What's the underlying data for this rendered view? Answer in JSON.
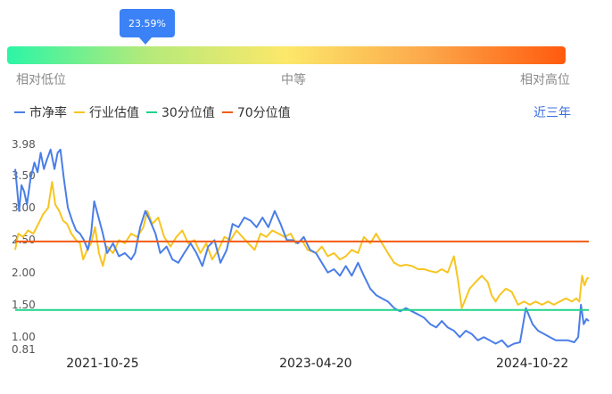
{
  "gauge": {
    "tooltip": "23.59%",
    "percentile": 23.59,
    "low_label": "相对低位",
    "mid_label": "中等",
    "high_label": "相对高位"
  },
  "range_selector": "近三年",
  "colors": {
    "pb": "#4a7ee8",
    "industry": "#f7c521",
    "p30": "#20d38c",
    "p70": "#f25a12",
    "tooltip": "#3b82f6"
  },
  "chart_data": {
    "type": "line",
    "ylim": [
      0.81,
      3.98
    ],
    "yticks": [
      "3.98",
      "3.50",
      "3.00",
      "2.50",
      "2.00",
      "1.50",
      "1.00",
      "0.81"
    ],
    "ytick_values": [
      3.98,
      3.5,
      3.0,
      2.5,
      2.0,
      1.5,
      1.0,
      0.81
    ],
    "x_range": [
      "2021-03-16",
      "2025-03-14"
    ],
    "xticks": [
      "2021-10-25",
      "2023-04-20",
      "2024-10-22"
    ],
    "series": [
      {
        "name": "市净率",
        "color": "#4a7ee8",
        "points": [
          [
            "2021-03-16",
            3.6
          ],
          [
            "2021-03-20",
            3.35
          ],
          [
            "2021-03-26",
            2.95
          ],
          [
            "2021-04-01",
            3.35
          ],
          [
            "2021-04-08",
            3.25
          ],
          [
            "2021-04-15",
            3.05
          ],
          [
            "2021-04-24",
            3.45
          ],
          [
            "2021-05-04",
            3.7
          ],
          [
            "2021-05-12",
            3.55
          ],
          [
            "2021-05-20",
            3.85
          ],
          [
            "2021-05-28",
            3.6
          ],
          [
            "2021-06-05",
            3.75
          ],
          [
            "2021-06-14",
            3.9
          ],
          [
            "2021-06-24",
            3.6
          ],
          [
            "2021-07-02",
            3.85
          ],
          [
            "2021-07-09",
            3.9
          ],
          [
            "2021-07-18",
            3.45
          ],
          [
            "2021-07-28",
            3.0
          ],
          [
            "2021-08-08",
            2.8
          ],
          [
            "2021-08-18",
            2.65
          ],
          [
            "2021-08-28",
            2.6
          ],
          [
            "2021-09-07",
            2.5
          ],
          [
            "2021-09-17",
            2.35
          ],
          [
            "2021-09-25",
            2.6
          ],
          [
            "2021-10-03",
            3.1
          ],
          [
            "2021-10-12",
            2.9
          ],
          [
            "2021-10-25",
            2.6
          ],
          [
            "2021-11-05",
            2.3
          ],
          [
            "2021-11-20",
            2.45
          ],
          [
            "2021-12-05",
            2.25
          ],
          [
            "2021-12-20",
            2.3
          ],
          [
            "2022-01-05",
            2.2
          ],
          [
            "2022-01-15",
            2.3
          ],
          [
            "2022-01-28",
            2.7
          ],
          [
            "2022-02-10",
            2.95
          ],
          [
            "2022-02-22",
            2.8
          ],
          [
            "2022-03-08",
            2.6
          ],
          [
            "2022-03-20",
            2.3
          ],
          [
            "2022-04-05",
            2.4
          ],
          [
            "2022-04-20",
            2.2
          ],
          [
            "2022-05-05",
            2.15
          ],
          [
            "2022-05-20",
            2.3
          ],
          [
            "2022-06-05",
            2.45
          ],
          [
            "2022-06-20",
            2.3
          ],
          [
            "2022-07-05",
            2.1
          ],
          [
            "2022-07-20",
            2.4
          ],
          [
            "2022-08-05",
            2.5
          ],
          [
            "2022-08-20",
            2.15
          ],
          [
            "2022-09-05",
            2.35
          ],
          [
            "2022-09-20",
            2.75
          ],
          [
            "2022-10-05",
            2.7
          ],
          [
            "2022-10-20",
            2.85
          ],
          [
            "2022-11-05",
            2.8
          ],
          [
            "2022-11-20",
            2.7
          ],
          [
            "2022-12-05",
            2.85
          ],
          [
            "2022-12-20",
            2.7
          ],
          [
            "2023-01-05",
            2.95
          ],
          [
            "2023-01-20",
            2.75
          ],
          [
            "2023-02-05",
            2.5
          ],
          [
            "2023-02-20",
            2.5
          ],
          [
            "2023-03-05",
            2.45
          ],
          [
            "2023-03-20",
            2.55
          ],
          [
            "2023-04-05",
            2.35
          ],
          [
            "2023-04-20",
            2.3
          ],
          [
            "2023-05-05",
            2.15
          ],
          [
            "2023-05-20",
            2.0
          ],
          [
            "2023-06-05",
            2.05
          ],
          [
            "2023-06-20",
            1.95
          ],
          [
            "2023-07-05",
            2.1
          ],
          [
            "2023-07-20",
            1.95
          ],
          [
            "2023-08-05",
            2.15
          ],
          [
            "2023-08-20",
            1.95
          ],
          [
            "2023-09-05",
            1.75
          ],
          [
            "2023-09-20",
            1.65
          ],
          [
            "2023-10-05",
            1.6
          ],
          [
            "2023-10-20",
            1.55
          ],
          [
            "2023-11-05",
            1.45
          ],
          [
            "2023-11-20",
            1.4
          ],
          [
            "2023-12-05",
            1.45
          ],
          [
            "2023-12-20",
            1.4
          ],
          [
            "2024-01-05",
            1.35
          ],
          [
            "2024-01-20",
            1.3
          ],
          [
            "2024-02-05",
            1.2
          ],
          [
            "2024-02-20",
            1.15
          ],
          [
            "2024-03-05",
            1.25
          ],
          [
            "2024-03-20",
            1.15
          ],
          [
            "2024-04-05",
            1.1
          ],
          [
            "2024-04-20",
            1.0
          ],
          [
            "2024-05-05",
            1.1
          ],
          [
            "2024-05-20",
            1.05
          ],
          [
            "2024-06-05",
            0.95
          ],
          [
            "2024-06-20",
            1.0
          ],
          [
            "2024-07-05",
            0.95
          ],
          [
            "2024-07-20",
            0.9
          ],
          [
            "2024-08-05",
            0.95
          ],
          [
            "2024-08-20",
            0.85
          ],
          [
            "2024-09-05",
            0.9
          ],
          [
            "2024-09-20",
            0.92
          ],
          [
            "2024-10-05",
            1.45
          ],
          [
            "2024-10-22",
            1.2
          ],
          [
            "2024-11-05",
            1.1
          ],
          [
            "2024-11-20",
            1.05
          ],
          [
            "2024-12-05",
            1.0
          ],
          [
            "2024-12-20",
            0.95
          ],
          [
            "2025-01-05",
            0.95
          ],
          [
            "2025-01-20",
            0.95
          ],
          [
            "2025-02-05",
            0.92
          ],
          [
            "2025-02-15",
            1.0
          ],
          [
            "2025-02-22",
            1.5
          ],
          [
            "2025-03-01",
            1.2
          ],
          [
            "2025-03-08",
            1.28
          ],
          [
            "2025-03-14",
            1.25
          ]
        ]
      },
      {
        "name": "行业估值",
        "color": "#f7c521",
        "points": [
          [
            "2021-03-16",
            2.35
          ],
          [
            "2021-03-24",
            2.6
          ],
          [
            "2021-04-05",
            2.55
          ],
          [
            "2021-04-18",
            2.65
          ],
          [
            "2021-05-01",
            2.6
          ],
          [
            "2021-05-14",
            2.75
          ],
          [
            "2021-05-26",
            2.9
          ],
          [
            "2021-06-08",
            3.0
          ],
          [
            "2021-06-18",
            3.4
          ],
          [
            "2021-06-26",
            3.05
          ],
          [
            "2021-07-06",
            2.95
          ],
          [
            "2021-07-16",
            2.8
          ],
          [
            "2021-07-26",
            2.75
          ],
          [
            "2021-08-06",
            2.6
          ],
          [
            "2021-08-18",
            2.5
          ],
          [
            "2021-08-28",
            2.45
          ],
          [
            "2021-09-05",
            2.2
          ],
          [
            "2021-09-15",
            2.35
          ],
          [
            "2021-09-25",
            2.45
          ],
          [
            "2021-10-05",
            2.7
          ],
          [
            "2021-10-15",
            2.3
          ],
          [
            "2021-10-25",
            2.1
          ],
          [
            "2021-11-05",
            2.4
          ],
          [
            "2021-11-20",
            2.3
          ],
          [
            "2021-12-05",
            2.5
          ],
          [
            "2021-12-20",
            2.45
          ],
          [
            "2022-01-05",
            2.6
          ],
          [
            "2022-01-20",
            2.55
          ],
          [
            "2022-02-05",
            2.7
          ],
          [
            "2022-02-15",
            2.95
          ],
          [
            "2022-02-28",
            2.75
          ],
          [
            "2022-03-15",
            2.85
          ],
          [
            "2022-03-30",
            2.55
          ],
          [
            "2022-04-15",
            2.4
          ],
          [
            "2022-04-30",
            2.55
          ],
          [
            "2022-05-15",
            2.65
          ],
          [
            "2022-05-30",
            2.45
          ],
          [
            "2022-06-15",
            2.5
          ],
          [
            "2022-06-30",
            2.3
          ],
          [
            "2022-07-15",
            2.45
          ],
          [
            "2022-07-30",
            2.2
          ],
          [
            "2022-08-15",
            2.35
          ],
          [
            "2022-08-30",
            2.55
          ],
          [
            "2022-09-15",
            2.5
          ],
          [
            "2022-09-30",
            2.65
          ],
          [
            "2022-10-15",
            2.55
          ],
          [
            "2022-10-30",
            2.45
          ],
          [
            "2022-11-15",
            2.35
          ],
          [
            "2022-11-30",
            2.6
          ],
          [
            "2022-12-15",
            2.55
          ],
          [
            "2022-12-30",
            2.65
          ],
          [
            "2023-01-15",
            2.6
          ],
          [
            "2023-01-30",
            2.55
          ],
          [
            "2023-02-15",
            2.6
          ],
          [
            "2023-02-28",
            2.45
          ],
          [
            "2023-03-15",
            2.5
          ],
          [
            "2023-03-30",
            2.35
          ],
          [
            "2023-04-20",
            2.3
          ],
          [
            "2023-05-05",
            2.4
          ],
          [
            "2023-05-20",
            2.25
          ],
          [
            "2023-06-05",
            2.3
          ],
          [
            "2023-06-20",
            2.2
          ],
          [
            "2023-07-05",
            2.25
          ],
          [
            "2023-07-20",
            2.35
          ],
          [
            "2023-08-05",
            2.3
          ],
          [
            "2023-08-20",
            2.55
          ],
          [
            "2023-09-05",
            2.45
          ],
          [
            "2023-09-20",
            2.6
          ],
          [
            "2023-10-05",
            2.45
          ],
          [
            "2023-10-20",
            2.3
          ],
          [
            "2023-11-05",
            2.15
          ],
          [
            "2023-11-20",
            2.1
          ],
          [
            "2023-12-05",
            2.12
          ],
          [
            "2023-12-20",
            2.1
          ],
          [
            "2024-01-05",
            2.05
          ],
          [
            "2024-01-20",
            2.05
          ],
          [
            "2024-02-05",
            2.02
          ],
          [
            "2024-02-20",
            2.0
          ],
          [
            "2024-03-05",
            2.05
          ],
          [
            "2024-03-20",
            2.0
          ],
          [
            "2024-04-05",
            2.25
          ],
          [
            "2024-04-15",
            1.9
          ],
          [
            "2024-04-25",
            1.45
          ],
          [
            "2024-05-05",
            1.6
          ],
          [
            "2024-05-15",
            1.75
          ],
          [
            "2024-05-30",
            1.85
          ],
          [
            "2024-06-15",
            1.95
          ],
          [
            "2024-06-30",
            1.85
          ],
          [
            "2024-07-10",
            1.65
          ],
          [
            "2024-07-20",
            1.55
          ],
          [
            "2024-07-30",
            1.65
          ],
          [
            "2024-08-15",
            1.75
          ],
          [
            "2024-08-30",
            1.7
          ],
          [
            "2024-09-15",
            1.5
          ],
          [
            "2024-09-30",
            1.55
          ],
          [
            "2024-10-15",
            1.5
          ],
          [
            "2024-10-30",
            1.55
          ],
          [
            "2024-11-15",
            1.5
          ],
          [
            "2024-11-30",
            1.55
          ],
          [
            "2024-12-15",
            1.5
          ],
          [
            "2024-12-30",
            1.55
          ],
          [
            "2025-01-15",
            1.6
          ],
          [
            "2025-01-30",
            1.55
          ],
          [
            "2025-02-10",
            1.6
          ],
          [
            "2025-02-18",
            1.55
          ],
          [
            "2025-02-25",
            1.95
          ],
          [
            "2025-03-03",
            1.8
          ],
          [
            "2025-03-09",
            1.9
          ],
          [
            "2025-03-14",
            1.92
          ]
        ]
      },
      {
        "name": "30分位值",
        "color": "#20d38c",
        "constant": 1.42
      },
      {
        "name": "70分位值",
        "color": "#f25a12",
        "constant": 2.48
      }
    ]
  }
}
